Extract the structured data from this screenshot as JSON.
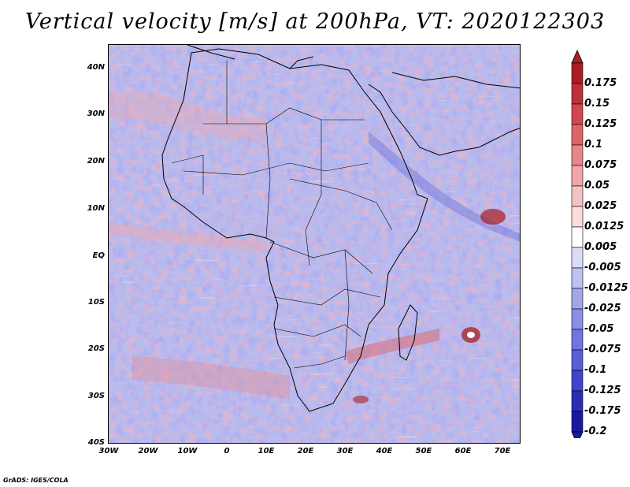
{
  "title": "Vertical velocity [m/s] at 200hPa, VT: 2020122303",
  "map": {
    "region": "Africa and surrounding oceans",
    "lat_labels": [
      "40N",
      "30N",
      "20N",
      "10N",
      "EQ",
      "10S",
      "20S",
      "30S",
      "40S"
    ],
    "lon_labels": [
      "30W",
      "20W",
      "10W",
      "0",
      "10E",
      "20E",
      "30E",
      "40E",
      "50E",
      "60E",
      "70E"
    ]
  },
  "colorbar": {
    "labels": [
      "0.175",
      "0.15",
      "0.125",
      "0.1",
      "0.075",
      "0.05",
      "0.025",
      "0.0125",
      "0.005",
      "-0.005",
      "-0.0125",
      "-0.025",
      "-0.05",
      "-0.075",
      "-0.1",
      "-0.125",
      "-0.175",
      "-0.2"
    ],
    "colors": [
      "#a81e24",
      "#c0303a",
      "#d0484e",
      "#de6468",
      "#e8868a",
      "#f0a6a8",
      "#f5c2c3",
      "#f9dcdc",
      "#ffffff",
      "#dadcf6",
      "#bfc2f0",
      "#a3a7ea",
      "#8a8fe4",
      "#7076de",
      "#585ed8",
      "#3f44cc",
      "#2a2eb4",
      "#1a1aa0"
    ],
    "arrow_top_color": "#a81e24",
    "arrow_bottom_color": "#1a1aa0"
  },
  "footer": "GrADS: IGES/COLA"
}
